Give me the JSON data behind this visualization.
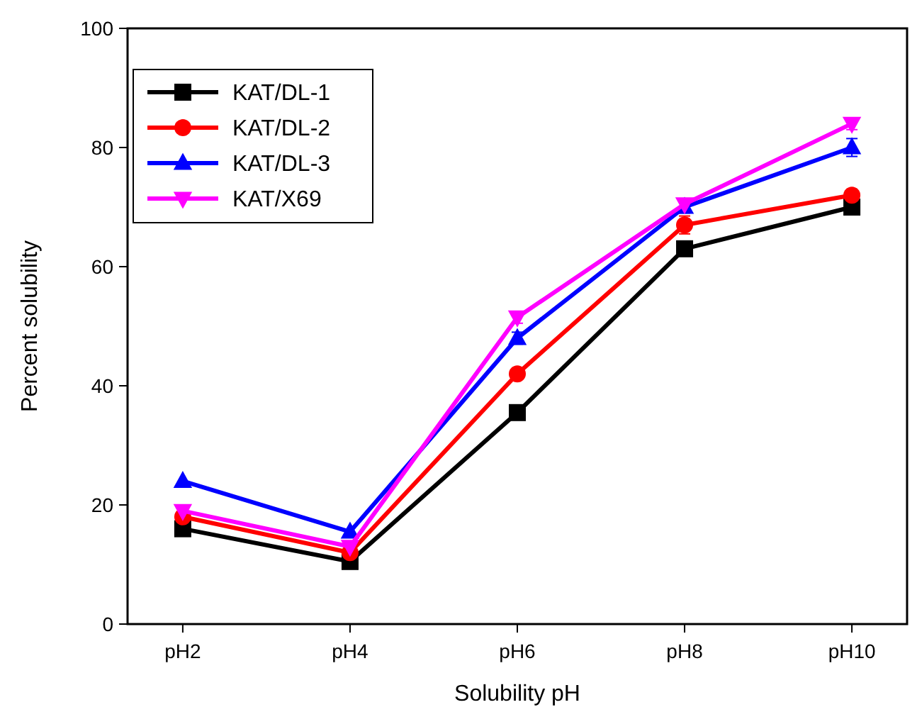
{
  "chart_data": {
    "type": "line",
    "xlabel": "Solubility pH",
    "ylabel": "Percent solubility",
    "categories": [
      "pH2",
      "pH4",
      "pH6",
      "pH8",
      "pH10"
    ],
    "ylim": [
      0,
      100
    ],
    "yticks": [
      0,
      20,
      40,
      60,
      80,
      100
    ],
    "grid": false,
    "legend": "top left",
    "line_style": "solid",
    "series": [
      {
        "name": "KAT/DL-1",
        "color": "#000000",
        "marker": "square",
        "values": [
          16,
          10.5,
          35.5,
          63,
          70
        ]
      },
      {
        "name": "KAT/DL-2",
        "color": "#ff0000",
        "marker": "circle",
        "values": [
          18,
          12,
          42,
          67,
          72
        ],
        "errors": [
          null,
          null,
          null,
          1.5,
          null
        ]
      },
      {
        "name": "KAT/DL-3",
        "color": "#0000ff",
        "marker": "triangle",
        "values": [
          24,
          15.5,
          48,
          70,
          80
        ],
        "errors": [
          null,
          null,
          1,
          1,
          1.5
        ]
      },
      {
        "name": "KAT/X69",
        "color": "#ff00ff",
        "marker": "triangle-down",
        "values": [
          19,
          13,
          51.5,
          70.5,
          84
        ],
        "errors": [
          null,
          null,
          1,
          null,
          1
        ]
      }
    ]
  }
}
